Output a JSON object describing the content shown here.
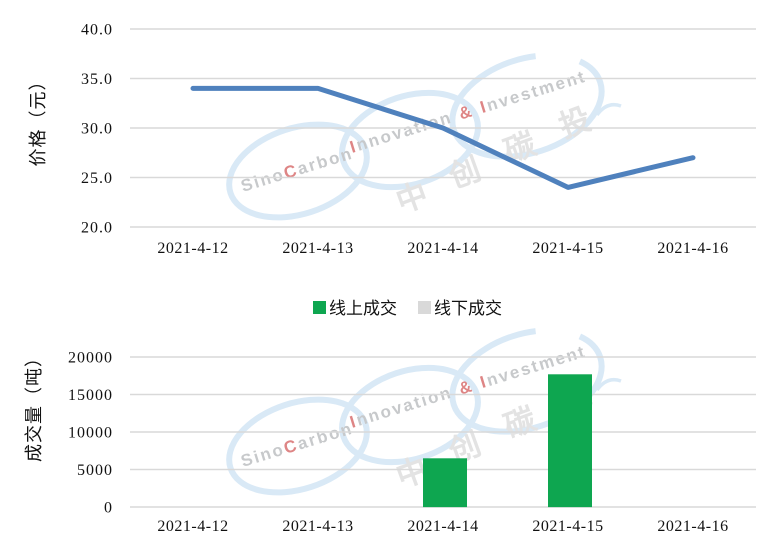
{
  "page": {
    "background": "#FFFFFF"
  },
  "axis": {
    "text_color": "#111111",
    "grid_color": "#D9D9D9"
  },
  "legend": {
    "items": [
      {
        "label": "线上成交",
        "color": "#0EA650"
      },
      {
        "label": "线下成交",
        "color": "#D9D9D9"
      }
    ]
  },
  "watermark": {
    "ring_color": "#D9E9F6",
    "gray": "#C7C9CB",
    "red": "#DE8585",
    "cn_color": "#E3E3E3",
    "brand": {
      "pre": "Sino",
      "accent": "C",
      "post": "arbon"
    },
    "tagline": {
      "i1": "I",
      "t1": "nnovation",
      "amp": "&",
      "i2": "I",
      "t2": "nvestment"
    },
    "cn_chars": [
      "中",
      "创",
      "碳",
      "投"
    ]
  },
  "chart_data": [
    {
      "type": "line",
      "title": "",
      "xlabel": "",
      "ylabel": "价格（元）",
      "x": [
        "2021-4-12",
        "2021-4-13",
        "2021-4-14",
        "2021-4-15",
        "2021-4-16"
      ],
      "series": [
        {
          "name": "价格",
          "color": "#4F81BD",
          "values": [
            34.0,
            34.0,
            30.0,
            24.0,
            27.0
          ]
        }
      ],
      "ylim": [
        20,
        40
      ],
      "yticks": [
        40,
        35,
        30,
        25,
        20
      ],
      "ytick_labels": [
        "40.0",
        "35.0",
        "30.0",
        "25.0",
        "20.0"
      ],
      "grid": true,
      "legend_position": "none"
    },
    {
      "type": "bar",
      "title": "",
      "xlabel": "",
      "ylabel": "成交量（吨）",
      "x": [
        "2021-4-12",
        "2021-4-13",
        "2021-4-14",
        "2021-4-15",
        "2021-4-16"
      ],
      "series": [
        {
          "name": "线上成交",
          "color": "#0EA650",
          "values": [
            0,
            0,
            6500,
            17700,
            0
          ]
        },
        {
          "name": "线下成交",
          "color": "#D9D9D9",
          "values": [
            0,
            0,
            0,
            0,
            0
          ]
        }
      ],
      "ylim": [
        0,
        20000
      ],
      "yticks": [
        20000,
        15000,
        10000,
        5000,
        0
      ],
      "ytick_labels": [
        "20000",
        "15000",
        "10000",
        "5000",
        "0"
      ],
      "grid": true,
      "legend_position": "center-between-charts"
    }
  ]
}
